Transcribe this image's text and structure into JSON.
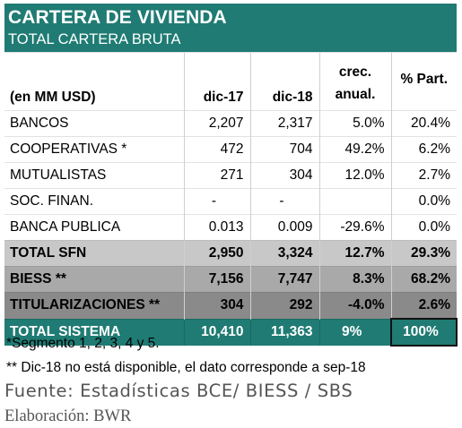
{
  "header": {
    "title": "CARTERA DE VIVIENDA",
    "subtitle": "TOTAL CARTERA BRUTA"
  },
  "columns": {
    "label": "(en MM USD)",
    "c1": "dic-17",
    "c2": "dic-18",
    "c3_line1": "crec.",
    "c3_line2": "anual.",
    "c4": "% Part."
  },
  "rows": [
    {
      "label": "BANCOS",
      "dic17": "2,207",
      "dic18": "2,317",
      "crec": "5.0%",
      "part": "20.4%"
    },
    {
      "label": "COOPERATIVAS *",
      "dic17": "472",
      "dic18": "704",
      "crec": "49.2%",
      "part": "6.2%"
    },
    {
      "label": "MUTUALISTAS",
      "dic17": "271",
      "dic18": "304",
      "crec": "12.0%",
      "part": "2.7%"
    },
    {
      "label": "SOC. FINAN.",
      "dic17": "-",
      "dic18": "-",
      "crec": "",
      "part": "0.0%"
    },
    {
      "label": "BANCA PUBLICA",
      "dic17": "0.013",
      "dic18": "0.009",
      "crec": "-29.6%",
      "part": "0.0%"
    },
    {
      "label": "TOTAL SFN",
      "dic17": "2,950",
      "dic18": "3,324",
      "crec": "12.7%",
      "part": "29.3%"
    },
    {
      "label": "BIESS **",
      "dic17": "7,156",
      "dic18": "7,747",
      "crec": "8.3%",
      "part": "68.2%"
    },
    {
      "label": "TITULARIZACIONES **",
      "dic17": "304",
      "dic18": "292",
      "crec": "-4.0%",
      "part": "2.6%"
    },
    {
      "label": "TOTAL SISTEMA",
      "dic17": "10,410",
      "dic18": "11,363",
      "crec": "9%",
      "part": "100%"
    }
  ],
  "notes": {
    "n1": "*Segmento 1, 2, 3, 4 y 5.",
    "n2": "** Dic-18 no está disponible, el dato corresponde a sep-18"
  },
  "source": "Fuente: Estadísticas BCE/ BIESS / SBS",
  "elaboration": "Elaboración: BWR",
  "colors": {
    "header_bg": "#1f7b73",
    "total_sfn_bg": "#c8c8c8",
    "biess_bg": "#a9a9a9",
    "titularizaciones_bg": "#8a8a8a",
    "total_sistema_bg": "#1f7b73"
  }
}
